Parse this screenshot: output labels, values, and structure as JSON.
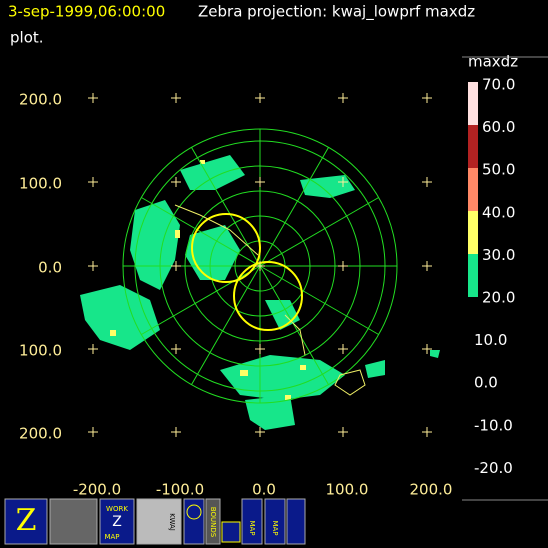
{
  "header": {
    "time": "3-sep-1999,06:00:00",
    "title": "Zebra projection: kwaj_lowprf maxdz",
    "title_cont": "plot."
  },
  "plot": {
    "y_labels": [
      "200.0",
      "100.0",
      "0.0",
      "100.0",
      "200.0"
    ],
    "x_labels": [
      "-200.0",
      "-100.0",
      "0.0",
      "100.0",
      "200.0"
    ]
  },
  "colorbar": {
    "field": "maxdz",
    "labels": [
      "70.0",
      "60.0",
      "50.0",
      "40.0",
      "30.0",
      "20.0",
      "10.0",
      "0.0",
      "-10.0",
      "-20.0"
    ]
  },
  "toolbar": {
    "work": "WORK",
    "z": "Z",
    "map": "MAP",
    "kwaj": "KWAJ",
    "bounds": "BOUNDS",
    "map2": "MAP",
    "map3": "MAP"
  }
}
